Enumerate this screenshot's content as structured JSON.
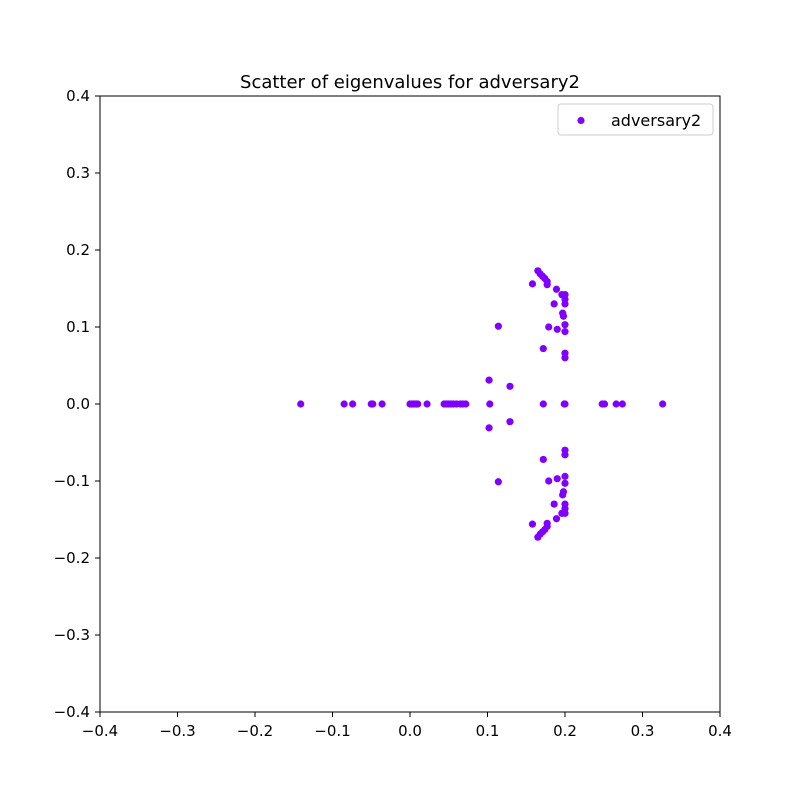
{
  "chart_data": {
    "type": "scatter",
    "title": "Scatter of eigenvalues for adversary2",
    "xlabel": "",
    "ylabel": "",
    "xlim": [
      -0.4,
      0.4
    ],
    "ylim": [
      -0.4,
      0.4
    ],
    "xticks": [
      -0.4,
      -0.3,
      -0.2,
      -0.1,
      0.0,
      0.1,
      0.2,
      0.3,
      0.4
    ],
    "yticks": [
      -0.4,
      -0.3,
      -0.2,
      -0.1,
      0.0,
      0.1,
      0.2,
      0.3,
      0.4
    ],
    "xtick_labels": [
      "−0.4",
      "−0.3",
      "−0.2",
      "−0.1",
      "0.0",
      "0.1",
      "0.2",
      "0.3",
      "0.4"
    ],
    "ytick_labels": [
      "−0.4",
      "−0.3",
      "−0.2",
      "−0.1",
      "0.0",
      "0.1",
      "0.2",
      "0.3",
      "0.4"
    ],
    "grid": false,
    "legend_position": "top-right",
    "series": [
      {
        "name": "adversary2",
        "color": "#8000ff",
        "points": [
          [
            -0.141,
            0.0
          ],
          [
            -0.085,
            0.0
          ],
          [
            -0.074,
            0.0
          ],
          [
            -0.05,
            0.0
          ],
          [
            -0.048,
            0.0
          ],
          [
            -0.036,
            0.0
          ],
          [
            0.0,
            0.0
          ],
          [
            0.002,
            0.0
          ],
          [
            0.004,
            0.0
          ],
          [
            0.006,
            0.0
          ],
          [
            0.008,
            0.0
          ],
          [
            0.01,
            0.0
          ],
          [
            0.022,
            0.0
          ],
          [
            0.044,
            0.0
          ],
          [
            0.047,
            0.0
          ],
          [
            0.05,
            0.0
          ],
          [
            0.053,
            0.0
          ],
          [
            0.056,
            0.0
          ],
          [
            0.06,
            0.0
          ],
          [
            0.065,
            0.0
          ],
          [
            0.068,
            0.0
          ],
          [
            0.072,
            0.0
          ],
          [
            0.103,
            0.0
          ],
          [
            0.172,
            0.0
          ],
          [
            0.199,
            0.0
          ],
          [
            0.2,
            0.0
          ],
          [
            0.248,
            0.0
          ],
          [
            0.251,
            0.0
          ],
          [
            0.266,
            0.0
          ],
          [
            0.274,
            0.0
          ],
          [
            0.326,
            0.0
          ],
          [
            0.102,
            0.031
          ],
          [
            0.102,
            -0.031
          ],
          [
            0.129,
            0.023
          ],
          [
            0.129,
            -0.023
          ],
          [
            0.114,
            0.101
          ],
          [
            0.114,
            -0.101
          ],
          [
            0.172,
            0.072
          ],
          [
            0.172,
            -0.072
          ],
          [
            0.158,
            0.156
          ],
          [
            0.158,
            -0.156
          ],
          [
            0.165,
            0.173
          ],
          [
            0.165,
            -0.173
          ],
          [
            0.168,
            0.169
          ],
          [
            0.168,
            -0.169
          ],
          [
            0.171,
            0.166
          ],
          [
            0.171,
            -0.166
          ],
          [
            0.174,
            0.163
          ],
          [
            0.174,
            -0.163
          ],
          [
            0.177,
            0.159
          ],
          [
            0.177,
            -0.159
          ],
          [
            0.177,
            0.155
          ],
          [
            0.177,
            -0.155
          ],
          [
            0.179,
            0.1
          ],
          [
            0.179,
            -0.1
          ],
          [
            0.186,
            0.13
          ],
          [
            0.186,
            -0.13
          ],
          [
            0.189,
            0.149
          ],
          [
            0.189,
            -0.149
          ],
          [
            0.19,
            0.097
          ],
          [
            0.19,
            -0.097
          ],
          [
            0.196,
            0.142
          ],
          [
            0.196,
            -0.142
          ],
          [
            0.197,
            0.118
          ],
          [
            0.197,
            -0.118
          ],
          [
            0.198,
            0.114
          ],
          [
            0.198,
            -0.114
          ],
          [
            0.2,
            0.142
          ],
          [
            0.2,
            -0.142
          ],
          [
            0.2,
            0.136
          ],
          [
            0.2,
            -0.136
          ],
          [
            0.2,
            0.13
          ],
          [
            0.2,
            -0.13
          ],
          [
            0.2,
            0.103
          ],
          [
            0.2,
            -0.103
          ],
          [
            0.2,
            0.094
          ],
          [
            0.2,
            -0.094
          ],
          [
            0.2,
            0.066
          ],
          [
            0.2,
            -0.066
          ],
          [
            0.2,
            0.06
          ],
          [
            0.2,
            -0.06
          ]
        ]
      }
    ]
  }
}
